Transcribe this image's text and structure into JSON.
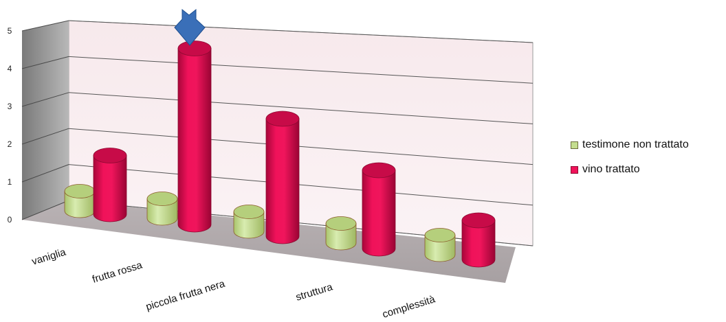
{
  "chart_data": {
    "type": "bar",
    "style": "3d-cylinder",
    "categories": [
      "vaniglia",
      "frutta rossa",
      "piccola frutta nera",
      "struttura",
      "complessità"
    ],
    "series": [
      {
        "name": "testimone non trattato",
        "values": [
          0.5,
          0.5,
          0.5,
          0.5,
          0.5
        ],
        "color": "#c4dd8e"
      },
      {
        "name": "vino trattato",
        "values": [
          1.5,
          4.5,
          3.0,
          2.0,
          1.0
        ],
        "color": "#f0125a"
      }
    ],
    "yticks": [
      0,
      1,
      2,
      3,
      4,
      5
    ],
    "ylim": [
      0,
      5
    ],
    "grid": true,
    "legend_position": "right",
    "annotation": {
      "type": "arrow-down",
      "category": "frutta rossa",
      "color": "#3a6fb8"
    }
  }
}
